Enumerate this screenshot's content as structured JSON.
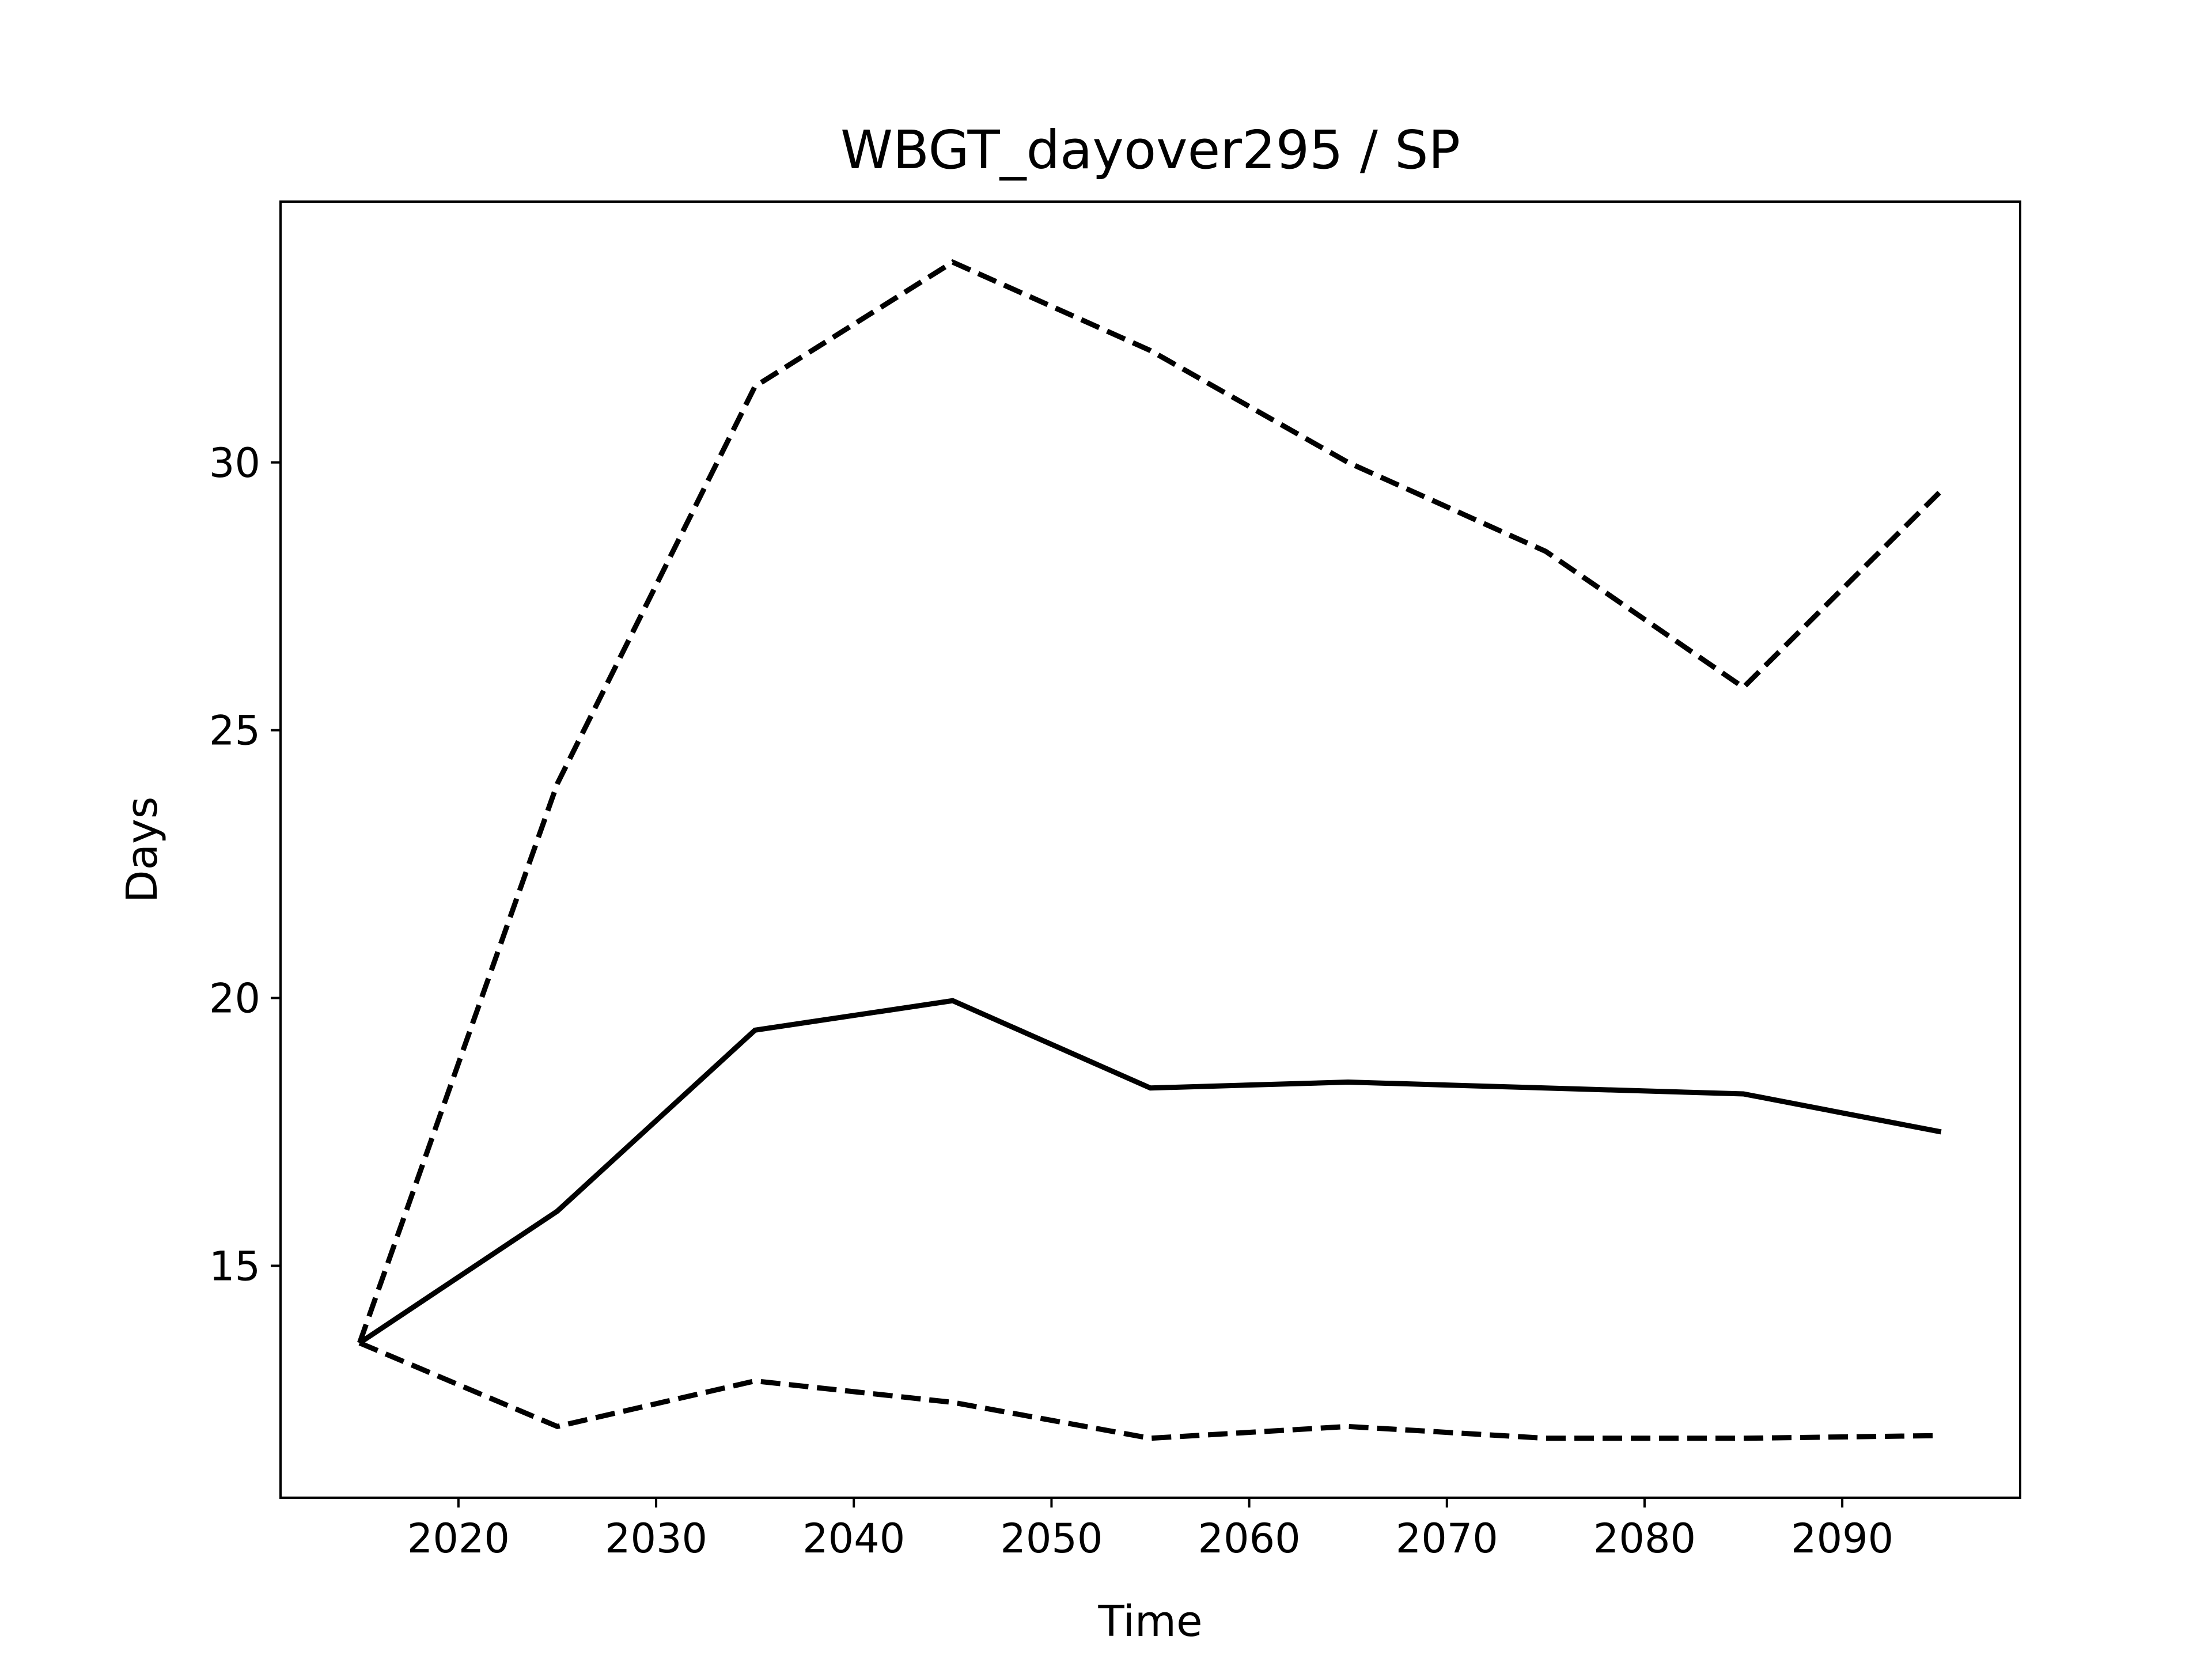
{
  "chart_data": {
    "type": "line",
    "title": "WBGT_dayover295 / SP",
    "x_label": "Time",
    "y_label": "Days",
    "x": [
      2015,
      2025,
      2035,
      2045,
      2055,
      2065,
      2075,
      2085,
      2095
    ],
    "series": [
      {
        "color": "#000000",
        "style": "solid",
        "values": [
          13.56,
          16.02,
          19.4,
          19.95,
          18.32,
          18.43,
          18.32,
          18.21,
          17.5
        ]
      },
      {
        "color": "#000000",
        "style": "dashed",
        "values": [
          13.56,
          24.0,
          31.42,
          33.74,
          32.09,
          30.0,
          28.34,
          25.8,
          29.47
        ]
      },
      {
        "color": "#000000",
        "style": "dashed",
        "values": [
          13.56,
          12.0,
          12.85,
          12.45,
          11.78,
          12.0,
          11.78,
          11.78,
          11.83
        ]
      }
    ],
    "xlim": [
      2011,
      2099
    ],
    "xticks": [
      2020,
      2030,
      2040,
      2050,
      2060,
      2070,
      2080,
      2090
    ],
    "ylim": [
      10.67,
      34.87
    ],
    "yticks": [
      15,
      20,
      25,
      30
    ],
    "grid": false
  }
}
